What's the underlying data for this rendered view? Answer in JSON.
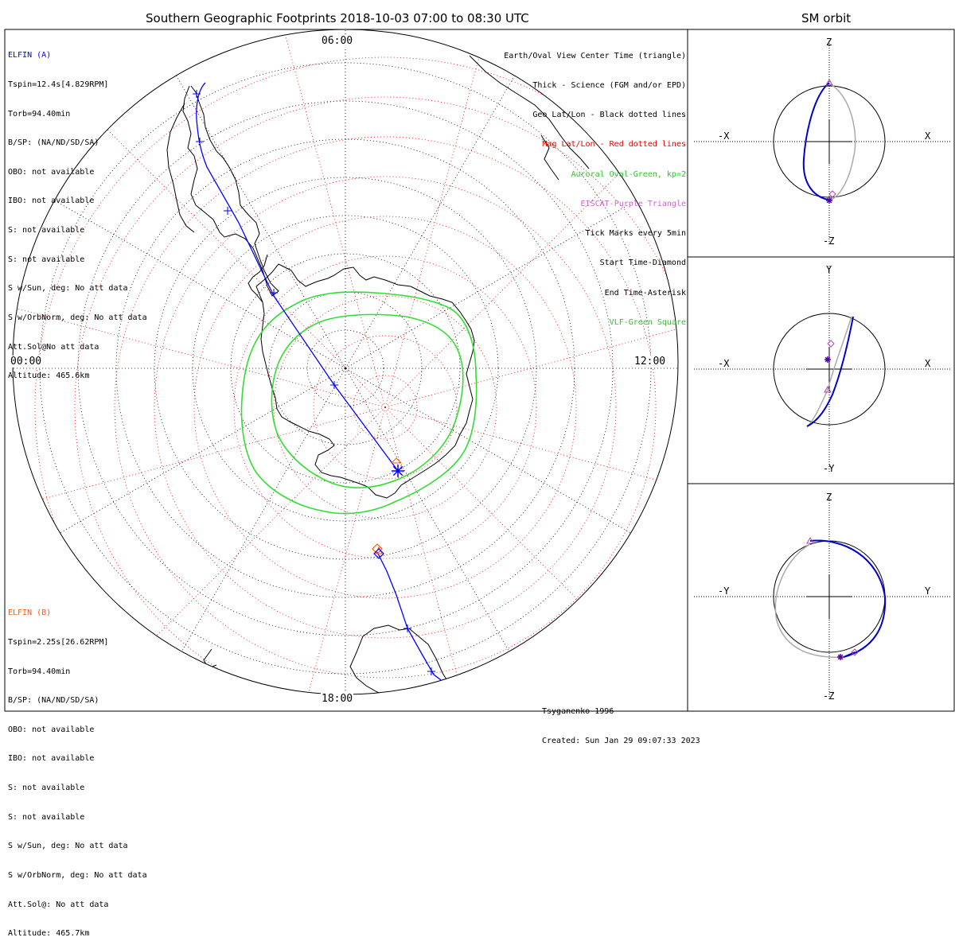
{
  "main_title": "Southern Geographic Footprints 2018-10-03 07:00 to 08:30 UTC",
  "side_title": "SM orbit",
  "hour_labels": {
    "top": "06:00",
    "left": "00:00",
    "right": "12:00",
    "bottom": "18:00"
  },
  "elfin_a": {
    "name": "ELFIN (A)",
    "color": "#0000ff",
    "lines": [
      "Tspin=12.4s[4.829RPM]",
      "Torb=94.40min",
      "B/SP: (NA/ND/SD/SA)",
      "OBO: not available",
      "IBO: not available",
      "S: not available",
      "S: not available",
      "S w/Sun, deg: No att data",
      "S w/OrbNorm, deg: No att data",
      "Att.Sol@No att data",
      "Altitude: 465.6km"
    ]
  },
  "elfin_b": {
    "name": "ELFIN (B)",
    "color": "#ff5a00",
    "lines": [
      "Tspin=2.25s[26.62RPM]",
      "Torb=94.40min",
      "B/SP: (NA/ND/SD/SA)",
      "OBO: not available",
      "IBO: not available",
      "S: not available",
      "S: not available",
      "S w/Sun, deg: No att data",
      "S w/OrbNorm, deg: No att data",
      "Att.Sol@: No att data",
      "Altitude: 465.7km"
    ]
  },
  "legend": [
    {
      "text": "Earth/Oval View Center Time (triangle)",
      "color": "#000000"
    },
    {
      "text": "Thick - Science (FGM and/or EPD)",
      "color": "#000000"
    },
    {
      "text": "Geo Lat/Lon - Black dotted lines",
      "color": "#000000"
    },
    {
      "text": "Mag Lat/Lon - Red dotted lines",
      "color": "#e00000"
    },
    {
      "text": "Auroral Oval-Green, kp=2",
      "color": "#22cc22"
    },
    {
      "text": "EISCAT-Purple Triangle",
      "color": "#cc66cc"
    },
    {
      "text": "Tick Marks every 5min",
      "color": "#000000"
    },
    {
      "text": "Start Time-Diamond",
      "color": "#000000"
    },
    {
      "text": "End Time-Asterisk",
      "color": "#000000"
    },
    {
      "text": "VLF-Green Square",
      "color": "#33bb33"
    }
  ],
  "footer": {
    "model": "Tsyganenko-1996",
    "created": "Created: Sun Jan 29 09:07:33 2023"
  },
  "panels": [
    {
      "top": "Z",
      "bottom": "-Z",
      "left": "-X",
      "right": "X"
    },
    {
      "top": "Y",
      "bottom": "-Y",
      "left": "-X",
      "right": "X"
    },
    {
      "top": "Z",
      "bottom": "-Z",
      "left": "-Y",
      "right": "Y"
    }
  ],
  "colors": {
    "orbit_a": "#0000cc",
    "orbit_ghost": "#aaaaaa",
    "geo_grid": "#000000",
    "mag_grid": "#e00000",
    "auroral_oval": "#33dd33",
    "marker_b": "#ff5a00"
  }
}
